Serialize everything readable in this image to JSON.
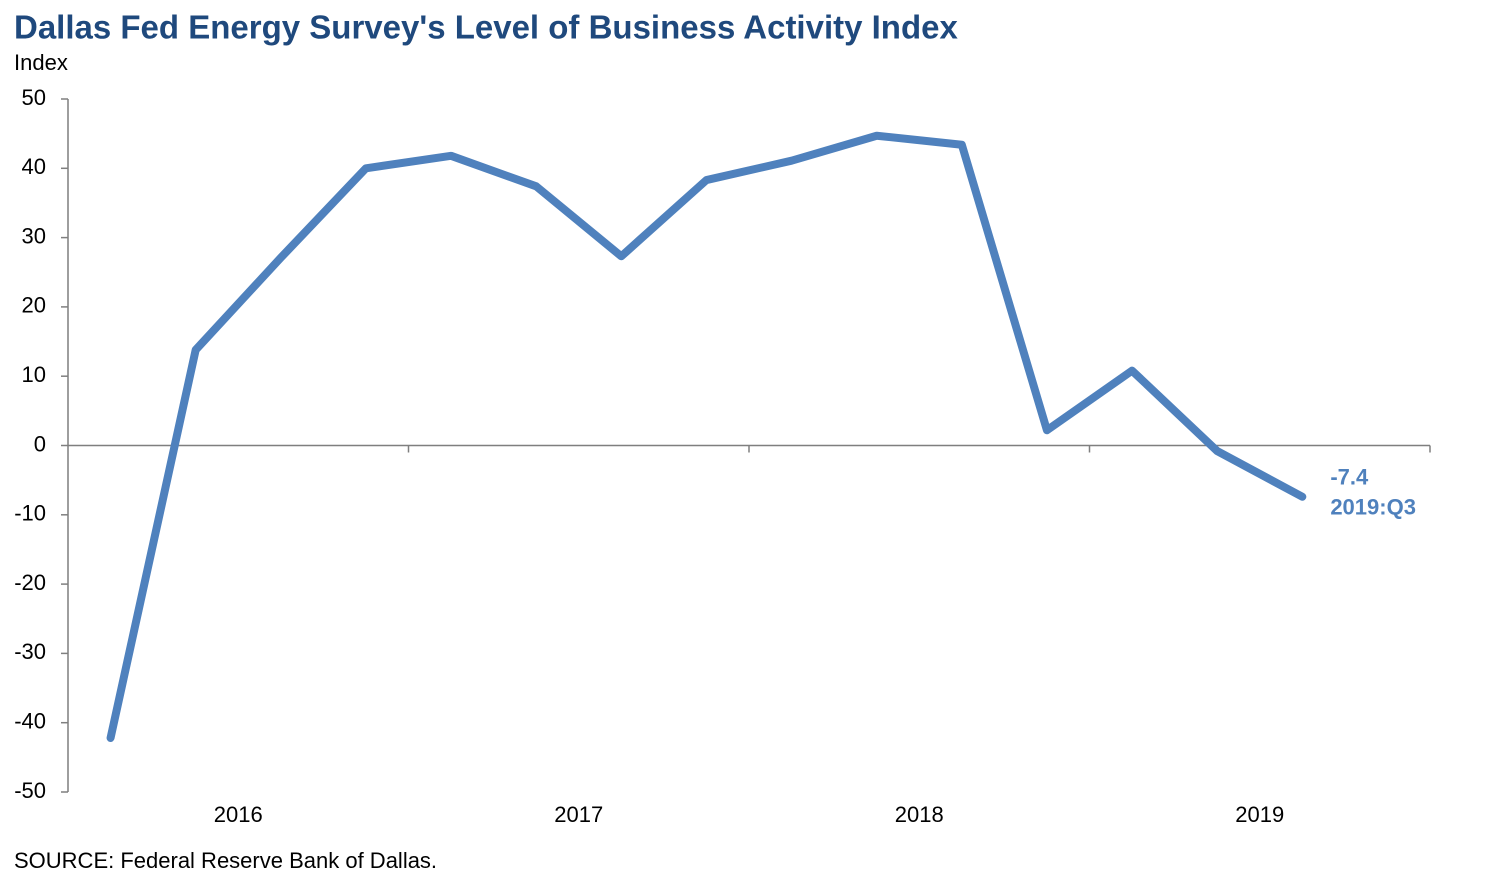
{
  "chart_data": {
    "type": "line",
    "title": "Dallas Fed Energy Survey's Level of Business Activity Index",
    "y_label": "Index",
    "source": "SOURCE: Federal Reserve Bank of Dallas.",
    "categories": [
      null,
      null,
      null,
      null,
      null,
      null,
      null,
      null,
      null,
      null,
      null,
      null,
      null,
      null,
      null
    ],
    "year_labels": [
      "2016",
      "2017",
      "2018",
      "2019"
    ],
    "series": [
      {
        "name": "Level of Business Activity Index",
        "color": "#4f81bd",
        "values": [
          -42.2,
          13.8,
          27.1,
          40.0,
          41.8,
          37.4,
          27.3,
          38.3,
          41.1,
          44.7,
          43.4,
          2.2,
          10.8,
          -0.8,
          -7.4
        ]
      }
    ],
    "annotation": "2019:Q3",
    "ylim": [
      -50,
      50
    ],
    "yticks": [
      -50,
      -40,
      -30,
      -20,
      -10,
      0,
      10,
      20,
      30,
      40,
      50
    ],
    "grid": false
  }
}
